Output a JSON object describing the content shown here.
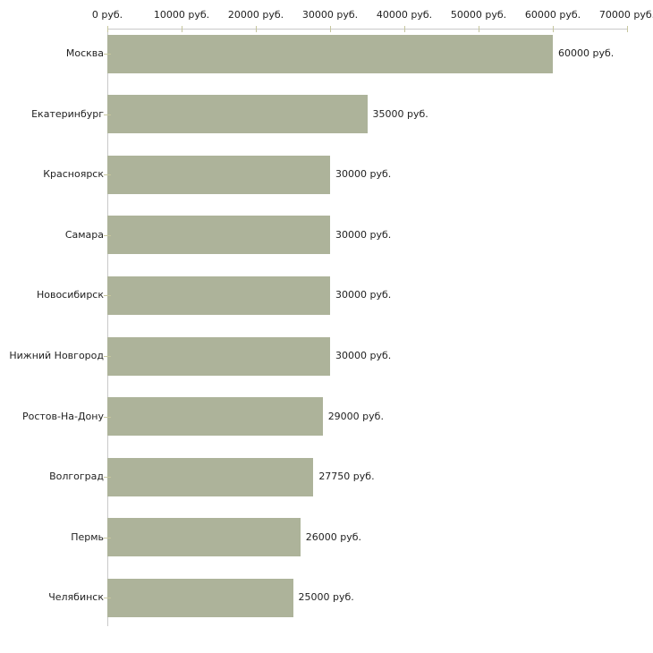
{
  "chart_data": {
    "type": "bar",
    "orientation": "horizontal",
    "title": "",
    "legend": "none",
    "grid": false,
    "categories": [
      "Москва",
      "Екатеринбург",
      "Красноярск",
      "Самара",
      "Новосибирск",
      "Нижний Новгород",
      "Ростов-На-Дону",
      "Волгоград",
      "Пермь",
      "Челябинск"
    ],
    "values": [
      60000,
      35000,
      30000,
      30000,
      30000,
      30000,
      29000,
      27750,
      26000,
      25000
    ],
    "value_labels": [
      "60000 руб.",
      "35000 руб.",
      "30000 руб.",
      "30000 руб.",
      "30000 руб.",
      "30000 руб.",
      "29000 руб.",
      "27750 руб.",
      "26000 руб.",
      "25000 руб."
    ],
    "x_axis": {
      "position": "top",
      "min": 0,
      "max": 70000,
      "ticks": [
        0,
        10000,
        20000,
        30000,
        40000,
        50000,
        60000,
        70000
      ],
      "tick_labels": [
        "0 руб.",
        "10000 руб.",
        "20000 руб.",
        "30000 руб.",
        "40000 руб.",
        "50000 руб.",
        "60000 руб.",
        "70000 руб."
      ]
    },
    "colors": {
      "bar": "#adb39a",
      "axis_line": "#c9c9c9",
      "tick_mark": "#c6c69e",
      "text": "#222222",
      "background": "#ffffff"
    }
  }
}
